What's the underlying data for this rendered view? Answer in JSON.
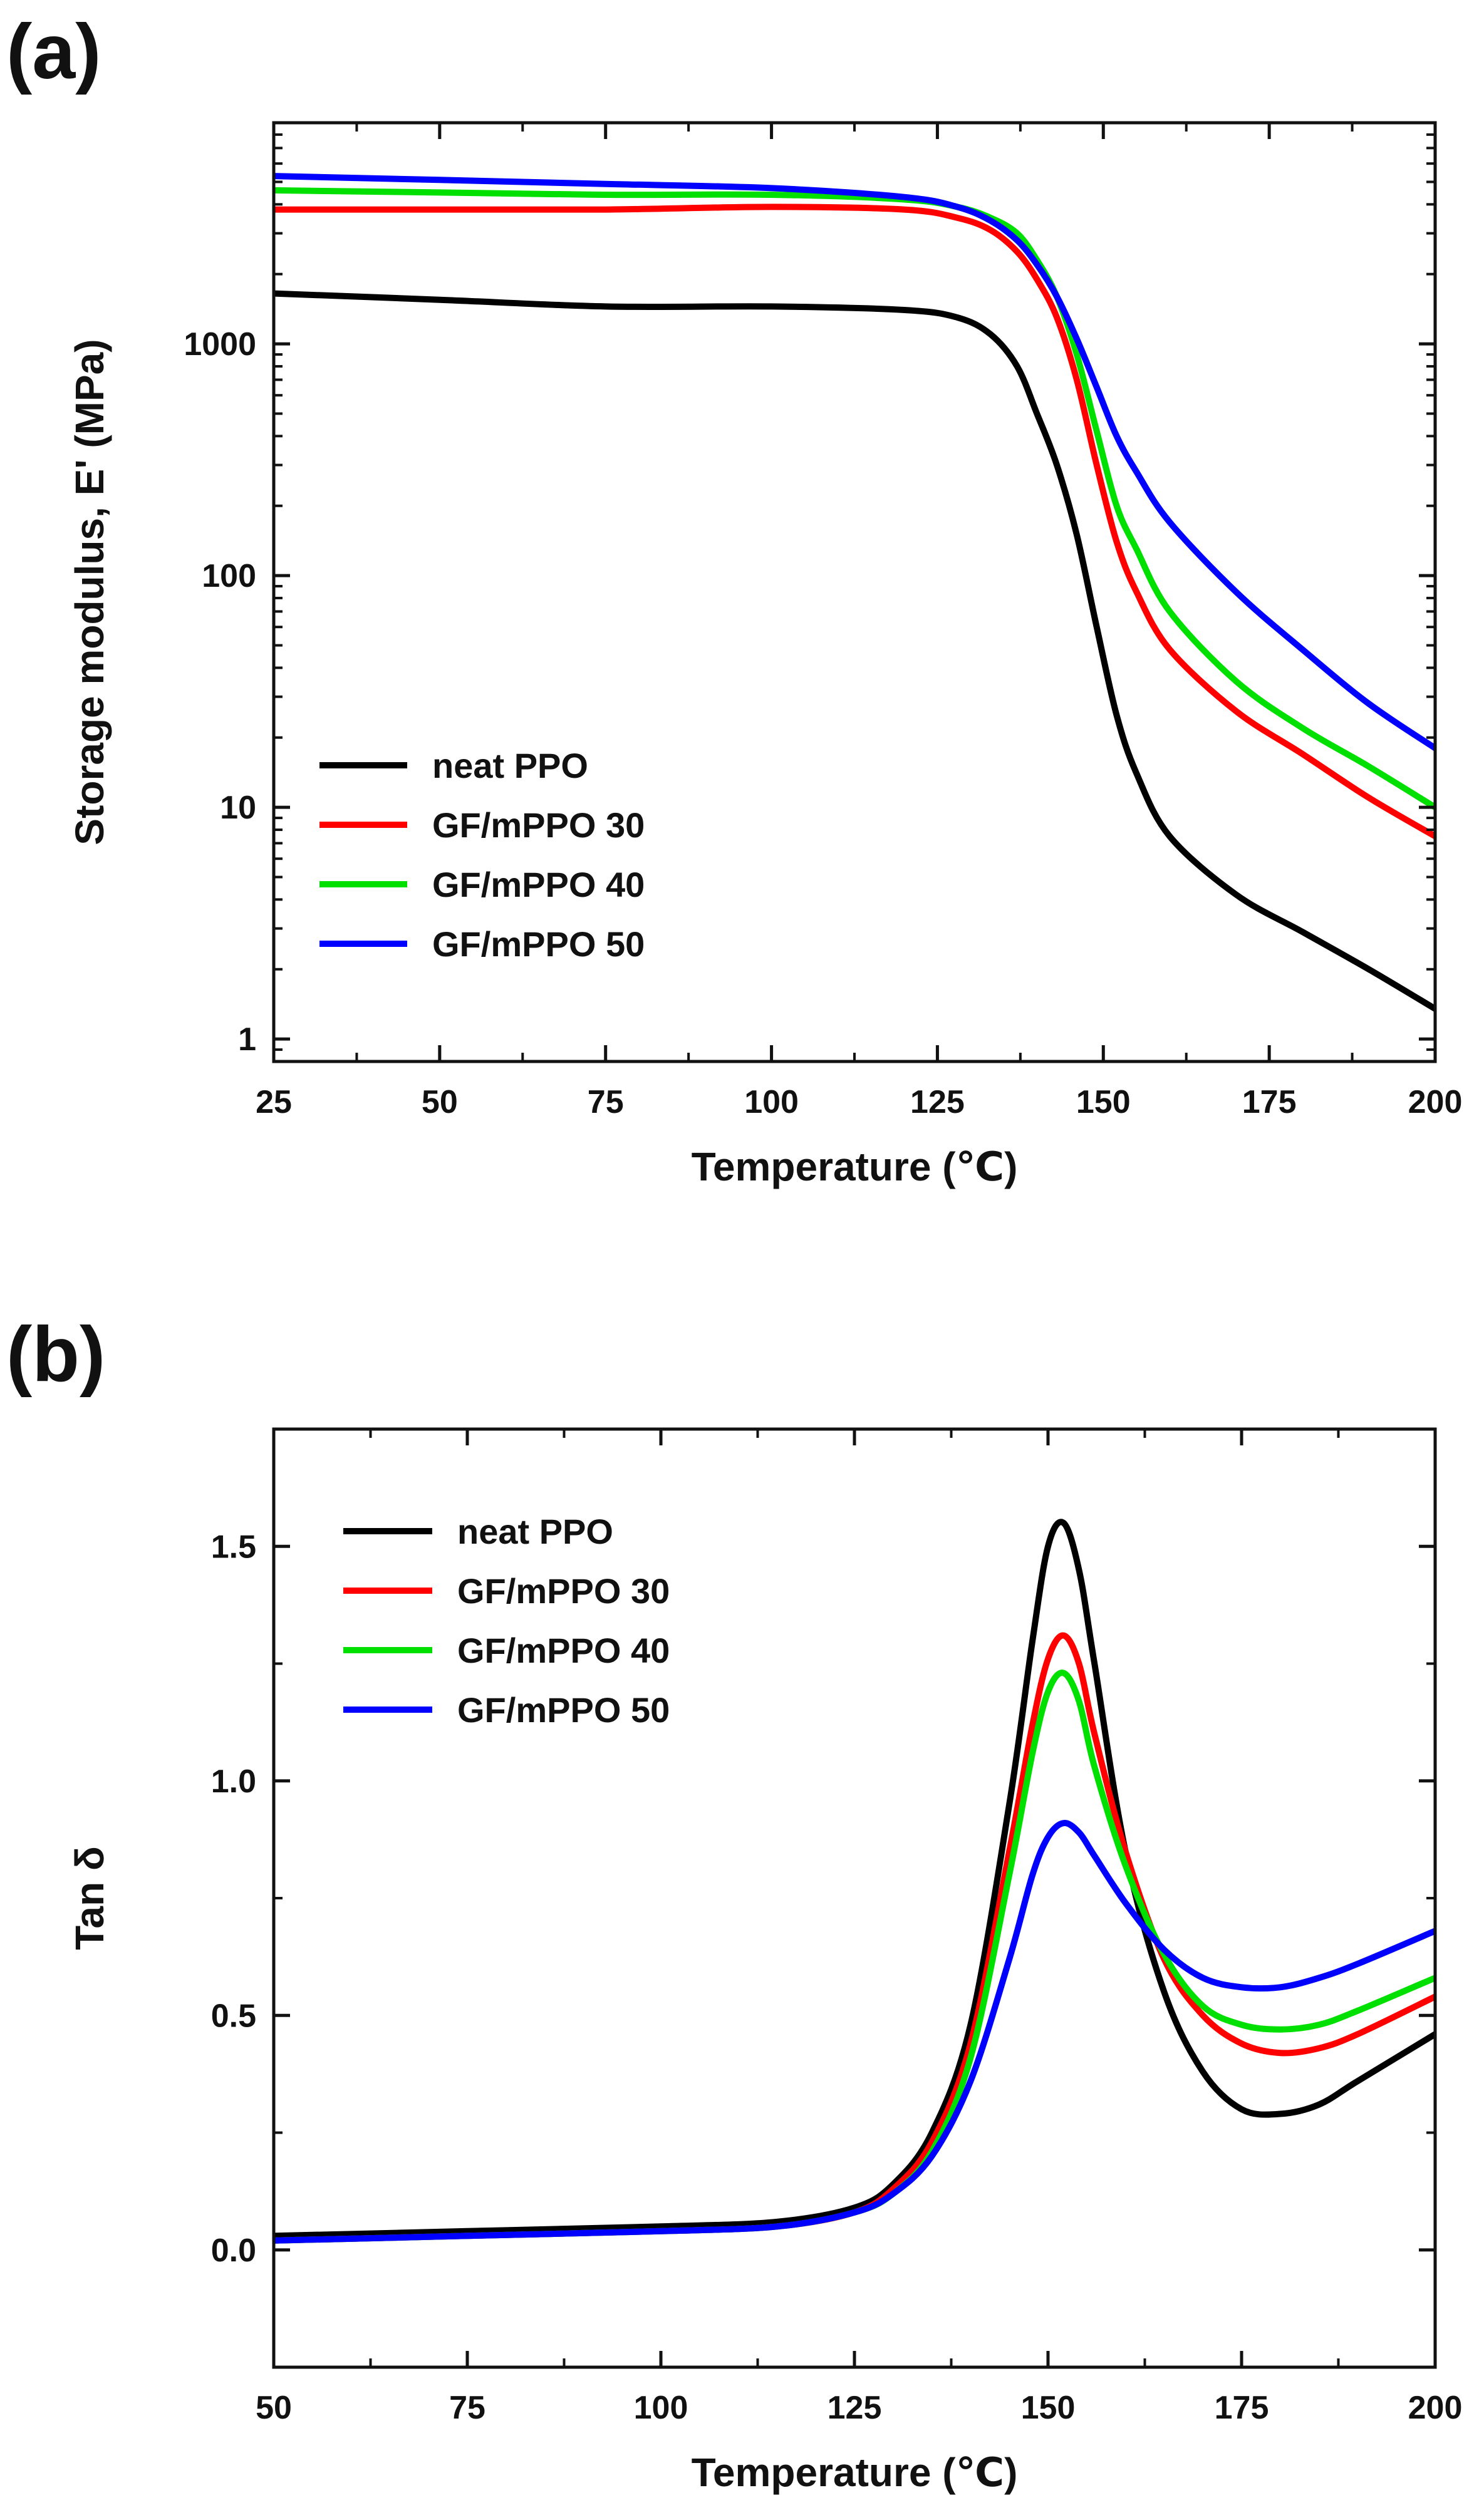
{
  "chart_data": [
    {
      "type": "line",
      "panel_label": "(a)",
      "title": "",
      "xlabel": "Temperature (℃)",
      "ylabel": "Storage modulus, E' (MPa)",
      "xscale": "linear",
      "yscale": "log",
      "xlim": [
        25,
        200
      ],
      "ylim": [
        0.8,
        9000
      ],
      "xticks": [
        25,
        50,
        75,
        100,
        125,
        150,
        175,
        200
      ],
      "xtick_labels": [
        "25",
        "50",
        "75",
        "100",
        "125",
        "150",
        "175",
        "200"
      ],
      "yticks": [
        1,
        10,
        100,
        1000
      ],
      "ytick_labels": [
        "1",
        "10",
        "100",
        "1000"
      ],
      "legend_position": "lower-left",
      "series": [
        {
          "name": "neat PPO",
          "color": "#000000",
          "x": [
            25,
            50,
            75,
            100,
            120,
            128,
            133,
            137,
            140,
            143,
            146,
            149,
            152,
            155,
            160,
            170,
            180,
            190,
            200
          ],
          "y": [
            1650,
            1550,
            1450,
            1450,
            1400,
            1300,
            1100,
            800,
            500,
            300,
            150,
            60,
            25,
            14,
            7.5,
            4.2,
            2.9,
            2.0,
            1.35
          ]
        },
        {
          "name": "GF/mPPO 30",
          "color": "#ff0000",
          "x": [
            25,
            50,
            75,
            100,
            120,
            128,
            133,
            137,
            140,
            143,
            146,
            149,
            152,
            155,
            160,
            170,
            180,
            190,
            200
          ],
          "y": [
            3800,
            3800,
            3800,
            3900,
            3800,
            3500,
            3100,
            2500,
            1900,
            1300,
            700,
            300,
            140,
            85,
            48,
            26,
            17,
            11,
            7.5
          ]
        },
        {
          "name": "GF/mPPO 40",
          "color": "#00e000",
          "x": [
            25,
            50,
            75,
            100,
            120,
            128,
            133,
            137,
            140,
            143,
            146,
            149,
            152,
            155,
            160,
            170,
            180,
            190,
            200
          ],
          "y": [
            4600,
            4500,
            4400,
            4400,
            4200,
            3900,
            3500,
            3000,
            2300,
            1600,
            900,
            420,
            200,
            130,
            70,
            35,
            22,
            15,
            10
          ]
        },
        {
          "name": "GF/mPPO 50",
          "color": "#0000ff",
          "x": [
            25,
            50,
            75,
            100,
            120,
            128,
            133,
            137,
            140,
            143,
            146,
            149,
            152,
            155,
            160,
            170,
            180,
            190,
            200
          ],
          "y": [
            5300,
            5100,
            4900,
            4700,
            4300,
            3900,
            3400,
            2800,
            2200,
            1600,
            1050,
            650,
            400,
            280,
            170,
            85,
            48,
            28,
            18
          ]
        }
      ]
    },
    {
      "type": "line",
      "panel_label": "(b)",
      "title": "",
      "xlabel": "Temperature (℃)",
      "ylabel": "Tan δ",
      "xscale": "linear",
      "yscale": "linear",
      "xlim": [
        50,
        200
      ],
      "ylim": [
        -0.25,
        1.75
      ],
      "xticks": [
        50,
        75,
        100,
        125,
        150,
        175,
        200
      ],
      "xtick_labels": [
        "50",
        "75",
        "100",
        "125",
        "150",
        "175",
        "200"
      ],
      "yticks": [
        0.0,
        0.5,
        1.0,
        1.5
      ],
      "ytick_labels": [
        "0.0",
        "0.5",
        "1.0",
        "1.5"
      ],
      "legend_position": "upper-left",
      "series": [
        {
          "name": "neat PPO",
          "color": "#000000",
          "x": [
            50,
            75,
            100,
            115,
            125,
            130,
            135,
            140,
            145,
            148,
            150,
            152,
            154,
            156,
            160,
            165,
            170,
            175,
            180,
            185,
            190,
            200
          ],
          "y": [
            0.03,
            0.04,
            0.05,
            0.06,
            0.09,
            0.14,
            0.25,
            0.48,
            0.95,
            1.3,
            1.5,
            1.55,
            1.45,
            1.25,
            0.85,
            0.55,
            0.38,
            0.3,
            0.29,
            0.31,
            0.36,
            0.46
          ]
        },
        {
          "name": "GF/mPPO 30",
          "color": "#ff0000",
          "x": [
            50,
            75,
            100,
            115,
            125,
            130,
            135,
            140,
            145,
            148,
            150,
            152,
            154,
            156,
            160,
            165,
            170,
            175,
            180,
            185,
            190,
            200
          ],
          "y": [
            0.02,
            0.03,
            0.04,
            0.05,
            0.08,
            0.13,
            0.23,
            0.44,
            0.85,
            1.12,
            1.26,
            1.31,
            1.25,
            1.1,
            0.85,
            0.62,
            0.5,
            0.44,
            0.42,
            0.43,
            0.46,
            0.54
          ]
        },
        {
          "name": "GF/mPPO 40",
          "color": "#00e000",
          "x": [
            50,
            75,
            100,
            115,
            125,
            130,
            135,
            140,
            145,
            148,
            150,
            152,
            154,
            156,
            160,
            165,
            170,
            175,
            180,
            185,
            190,
            200
          ],
          "y": [
            0.02,
            0.03,
            0.04,
            0.05,
            0.08,
            0.12,
            0.21,
            0.41,
            0.8,
            1.06,
            1.19,
            1.23,
            1.17,
            1.03,
            0.82,
            0.63,
            0.52,
            0.48,
            0.47,
            0.48,
            0.51,
            0.58
          ]
        },
        {
          "name": "GF/mPPO 50",
          "color": "#0000ff",
          "x": [
            50,
            75,
            100,
            115,
            125,
            130,
            135,
            140,
            145,
            148,
            150,
            152,
            154,
            156,
            160,
            165,
            170,
            175,
            180,
            185,
            190,
            200
          ],
          "y": [
            0.02,
            0.03,
            0.04,
            0.05,
            0.08,
            0.12,
            0.2,
            0.36,
            0.62,
            0.8,
            0.88,
            0.91,
            0.89,
            0.84,
            0.74,
            0.64,
            0.58,
            0.56,
            0.56,
            0.58,
            0.61,
            0.68
          ]
        }
      ]
    }
  ]
}
